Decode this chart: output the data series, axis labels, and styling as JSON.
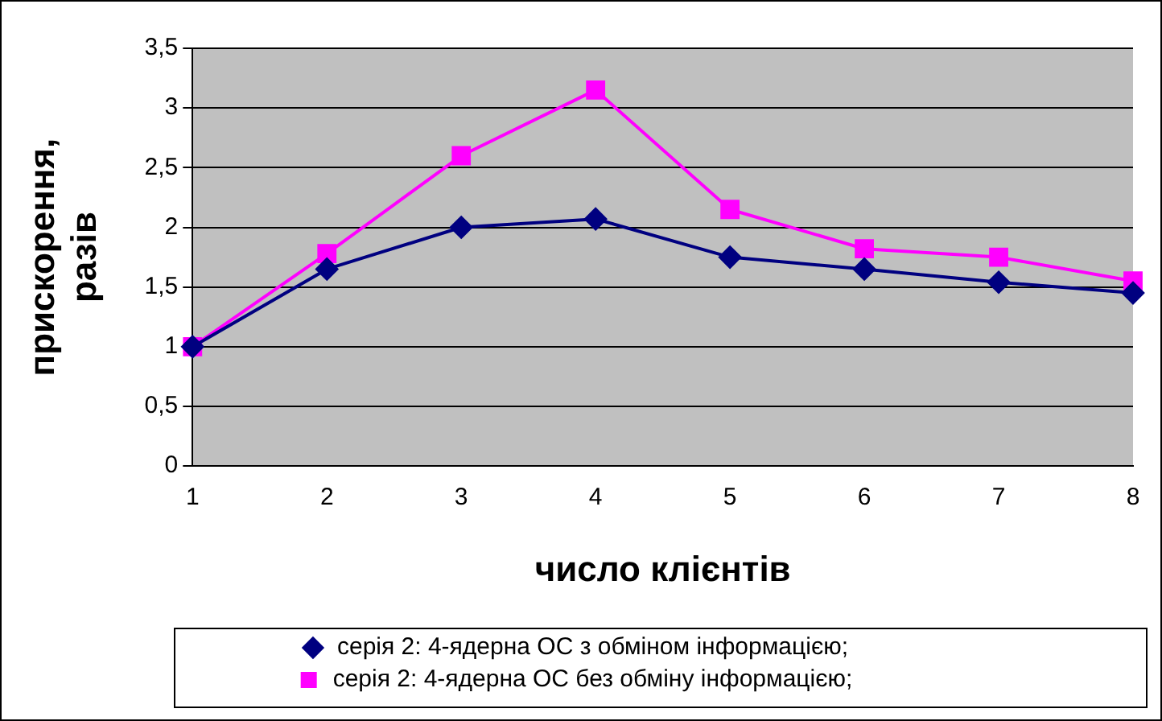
{
  "chart_data": {
    "type": "line",
    "xlabel": "число клієнтів",
    "ylabel": "прискорення, разів",
    "categories": [
      "1",
      "2",
      "3",
      "4",
      "5",
      "6",
      "7",
      "8"
    ],
    "series": [
      {
        "name": "серія 2: 4-ядерна ОС з обміном інформацією;",
        "color": "#000080",
        "marker": "diamond",
        "values": [
          1,
          1.65,
          2.0,
          2.07,
          1.75,
          1.65,
          1.54,
          1.45
        ]
      },
      {
        "name": "серія 2: 4-ядерна ОС без обміну інформацією;",
        "color": "#ff00ff",
        "marker": "square",
        "values": [
          1,
          1.78,
          2.6,
          3.15,
          2.15,
          1.82,
          1.75,
          1.55
        ]
      }
    ],
    "ylim": [
      0,
      3.5
    ],
    "yticks": [
      0,
      {
        "value": 0.5,
        "label": "0,5"
      },
      1,
      {
        "value": 1.5,
        "label": "1,5"
      },
      2,
      {
        "value": 2.5,
        "label": "2,5"
      },
      3,
      {
        "value": 3.5,
        "label": "3,5"
      }
    ],
    "grid": "y",
    "legend": "bottom",
    "line_style": "solid"
  }
}
